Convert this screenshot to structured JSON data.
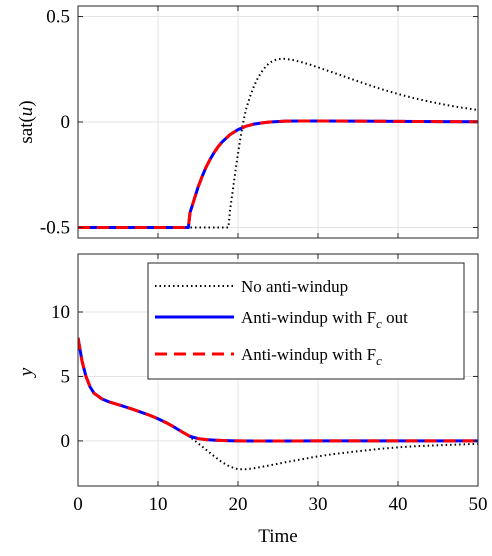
{
  "chart_data": [
    {
      "type": "line",
      "ylabel": "sat(u)",
      "xlim": [
        0,
        50
      ],
      "ylim": [
        -0.55,
        0.55
      ],
      "xticks": [
        0,
        10,
        20,
        30,
        40,
        50
      ],
      "xtick_labels_shown": false,
      "yticks": [
        -0.5,
        0,
        0.5
      ],
      "ytick_labels": [
        "-0.5",
        "0",
        "0.5"
      ],
      "grid": true,
      "series": [
        {
          "name": "No anti-windup",
          "color": "#000000",
          "style": "dotted",
          "x": [
            0,
            18.8,
            19.0,
            19.4,
            19.8,
            20.2,
            20.6,
            21.0,
            21.5,
            22.0,
            22.5,
            23.0,
            23.5,
            24.0,
            24.5,
            25.0,
            25.5,
            26.0,
            27.0,
            28.0,
            29.0,
            30.0,
            32.0,
            34.0,
            36.0,
            38.0,
            40.0,
            42.0,
            44.0,
            46.0,
            48.0,
            50.0
          ],
          "y": [
            -0.5,
            -0.5,
            -0.42,
            -0.31,
            -0.2,
            -0.1,
            -0.01,
            0.06,
            0.12,
            0.17,
            0.21,
            0.24,
            0.265,
            0.282,
            0.292,
            0.298,
            0.3,
            0.299,
            0.293,
            0.283,
            0.272,
            0.259,
            0.233,
            0.206,
            0.18,
            0.155,
            0.133,
            0.113,
            0.096,
            0.081,
            0.068,
            0.057
          ]
        },
        {
          "name": "Anti-windup with F_c out",
          "color": "#0000ff",
          "style": "solid",
          "x": [
            0,
            13.8,
            14.0,
            14.5,
            15.0,
            15.5,
            16.0,
            16.5,
            17.0,
            17.5,
            18.0,
            19.0,
            20.0,
            21.0,
            22.0,
            23.0,
            24.0,
            26.0,
            28.0,
            30.0,
            35.0,
            40.0,
            45.0,
            50.0
          ],
          "y": [
            -0.5,
            -0.5,
            -0.43,
            -0.37,
            -0.31,
            -0.26,
            -0.215,
            -0.178,
            -0.146,
            -0.118,
            -0.095,
            -0.06,
            -0.036,
            -0.02,
            -0.01,
            -0.004,
            0.0,
            0.004,
            0.005,
            0.005,
            0.004,
            0.003,
            0.002,
            0.001
          ]
        },
        {
          "name": "Anti-windup with F_c",
          "color": "#ff0000",
          "style": "dashed",
          "x": [
            0,
            13.8,
            14.0,
            14.5,
            15.0,
            15.5,
            16.0,
            16.5,
            17.0,
            17.5,
            18.0,
            19.0,
            20.0,
            21.0,
            22.0,
            23.0,
            24.0,
            26.0,
            28.0,
            30.0,
            35.0,
            40.0,
            45.0,
            50.0
          ],
          "y": [
            -0.5,
            -0.5,
            -0.43,
            -0.37,
            -0.31,
            -0.26,
            -0.215,
            -0.178,
            -0.146,
            -0.118,
            -0.095,
            -0.06,
            -0.036,
            -0.02,
            -0.01,
            -0.004,
            0.0,
            0.004,
            0.005,
            0.005,
            0.004,
            0.003,
            0.002,
            0.001
          ]
        }
      ]
    },
    {
      "type": "line",
      "xlabel": "Time",
      "ylabel": "y",
      "xlim": [
        0,
        50
      ],
      "ylim": [
        -3.5,
        14.5
      ],
      "xticks": [
        0,
        10,
        20,
        30,
        40,
        50
      ],
      "xtick_labels": [
        "0",
        "10",
        "20",
        "30",
        "40",
        "50"
      ],
      "yticks": [
        0,
        5,
        10
      ],
      "ytick_labels": [
        "0",
        "5",
        "10"
      ],
      "grid": true,
      "legend": {
        "placement": "top-right",
        "entries": [
          {
            "text": "No anti-windup",
            "subscript": "",
            "suffix": ""
          },
          {
            "text": "Anti-windup with F",
            "subscript": "c",
            "suffix": " out"
          },
          {
            "text": "Anti-windup with F",
            "subscript": "c",
            "suffix": ""
          }
        ]
      },
      "series": [
        {
          "name": "No anti-windup",
          "color": "#000000",
          "style": "dotted",
          "x": [
            0,
            0.5,
            1.0,
            1.5,
            2.0,
            3.0,
            4.0,
            5.0,
            6.0,
            7.0,
            8.0,
            9.0,
            10.0,
            11.0,
            12.0,
            13.0,
            14.0,
            15.0,
            16.0,
            17.0,
            18.0,
            19.0,
            20.0,
            21.0,
            22.0,
            24.0,
            26.0,
            28.0,
            30.0,
            32.0,
            35.0,
            38.0,
            40.0,
            42.0,
            45.0,
            48.0,
            50.0
          ],
          "y": [
            8.0,
            6.2,
            5.0,
            4.2,
            3.7,
            3.25,
            3.0,
            2.82,
            2.62,
            2.42,
            2.2,
            1.98,
            1.72,
            1.42,
            1.08,
            0.7,
            0.3,
            -0.18,
            -0.68,
            -1.18,
            -1.65,
            -2.0,
            -2.2,
            -2.2,
            -2.12,
            -1.9,
            -1.65,
            -1.42,
            -1.2,
            -1.02,
            -0.8,
            -0.6,
            -0.5,
            -0.42,
            -0.34,
            -0.27,
            -0.23
          ]
        },
        {
          "name": "Anti-windup with F_c out",
          "color": "#0000ff",
          "style": "solid",
          "x": [
            0,
            0.5,
            1.0,
            1.5,
            2.0,
            3.0,
            4.0,
            5.0,
            6.0,
            7.0,
            8.0,
            9.0,
            10.0,
            11.0,
            12.0,
            13.0,
            14.0,
            15.0,
            16.0,
            17.0,
            18.0,
            19.0,
            20.0,
            22.0,
            24.0,
            26.0,
            30.0,
            35.0,
            40.0,
            45.0,
            50.0
          ],
          "y": [
            8.0,
            6.2,
            5.0,
            4.2,
            3.7,
            3.25,
            3.0,
            2.82,
            2.62,
            2.42,
            2.2,
            1.98,
            1.72,
            1.42,
            1.08,
            0.7,
            0.35,
            0.18,
            0.1,
            0.06,
            0.03,
            0.01,
            0.0,
            -0.01,
            -0.01,
            -0.01,
            0.0,
            0.0,
            0.0,
            0.0,
            0.0
          ]
        },
        {
          "name": "Anti-windup with F_c",
          "color": "#ff0000",
          "style": "dashed",
          "x": [
            0,
            0.5,
            1.0,
            1.5,
            2.0,
            3.0,
            4.0,
            5.0,
            6.0,
            7.0,
            8.0,
            9.0,
            10.0,
            11.0,
            12.0,
            13.0,
            14.0,
            15.0,
            16.0,
            17.0,
            18.0,
            19.0,
            20.0,
            22.0,
            24.0,
            26.0,
            30.0,
            35.0,
            40.0,
            45.0,
            50.0
          ],
          "y": [
            8.0,
            6.2,
            5.0,
            4.2,
            3.7,
            3.25,
            3.0,
            2.82,
            2.62,
            2.42,
            2.2,
            1.98,
            1.72,
            1.42,
            1.08,
            0.7,
            0.35,
            0.18,
            0.1,
            0.06,
            0.03,
            0.01,
            0.0,
            -0.01,
            -0.01,
            -0.01,
            0.0,
            0.0,
            0.0,
            0.0,
            0.0
          ]
        }
      ]
    }
  ]
}
